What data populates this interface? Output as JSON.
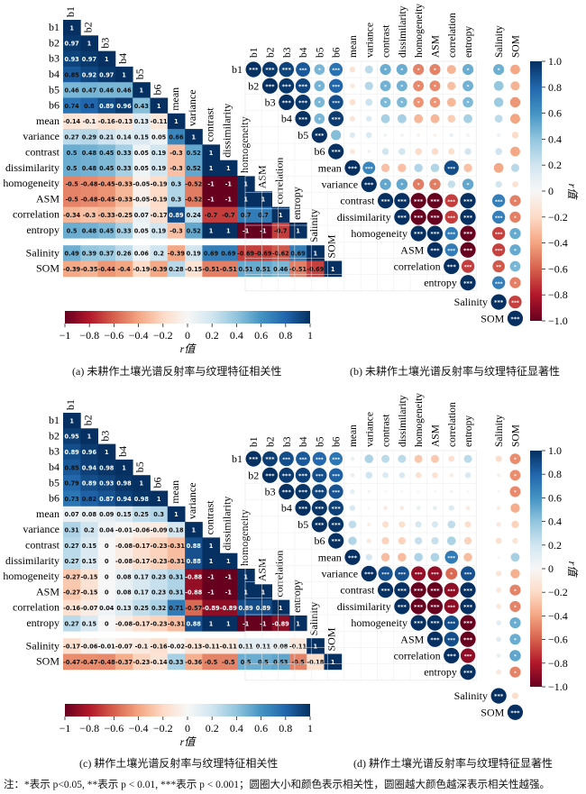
{
  "labels": [
    "b1",
    "b2",
    "b3",
    "b4",
    "b5",
    "b6",
    "mean",
    "variance",
    "contrast",
    "dissimilarity",
    "homogeneity",
    "ASM",
    "correlation",
    "entropy"
  ],
  "extra_labels": [
    "Salinity",
    "SOM"
  ],
  "colorbar": {
    "ticks_h": [
      "−1",
      "−0.8",
      "−0.6",
      "−0.4",
      "−0.2",
      "0",
      "0.2",
      "0.4",
      "0.6",
      "0.8",
      "1"
    ],
    "ticks_v": [
      "1.0",
      "0.8",
      "0.6",
      "0.4",
      "0.2",
      "0",
      "−0.2",
      "−0.4",
      "−0.6",
      "−0.8",
      "−1.0"
    ],
    "axis_label": "r值",
    "colors": [
      "#67001f",
      "#b2182b",
      "#d6604d",
      "#f4a582",
      "#fddbc7",
      "#f7f7f7",
      "#d1e5f0",
      "#92c5de",
      "#4393c3",
      "#2166ac",
      "#053061"
    ]
  },
  "sig_marks": {
    "p05": "*",
    "p01": "**",
    "p001": "***"
  },
  "captions": {
    "a": "(a) 未耕作土壤光谱反射率与纹理特征相关性",
    "b": "(b) 未耕作土壤光谱反射率与纹理特征显著性",
    "c": "(c) 耕作土壤光谱反射率与纹理特征相关性",
    "d": "(d) 耕作土壤光谱反射率与纹理特征显著性"
  },
  "note": "注：*表示 p<0.05, **表示 p < 0.01, ***表示 p < 0.001；圆圈大小和颜色表示相关性，圆圈越大颜色越深表示相关性越强。",
  "chart_data": [
    {
      "id": "uncultivated",
      "type": "heatmap",
      "xlabel": "r值",
      "clim": [
        -1,
        1
      ],
      "lower": [
        [
          1
        ],
        [
          0.97,
          1
        ],
        [
          0.93,
          0.97,
          1
        ],
        [
          0.85,
          0.92,
          0.97,
          1
        ],
        [
          0.46,
          0.47,
          0.46,
          0.46,
          1
        ],
        [
          0.74,
          0.8,
          0.89,
          0.96,
          0.43,
          1
        ],
        [
          -0.14,
          -0.1,
          -0.16,
          -0.13,
          0.13,
          -0.11,
          1
        ],
        [
          0.27,
          0.29,
          0.21,
          0.14,
          0.15,
          0.05,
          0.66,
          1
        ],
        [
          0.5,
          0.48,
          0.45,
          0.33,
          0.05,
          0.19,
          -0.3,
          0.52,
          1
        ],
        [
          0.5,
          0.48,
          0.45,
          0.33,
          0.05,
          0.19,
          -0.3,
          0.52,
          1,
          1
        ],
        [
          -0.5,
          -0.48,
          -0.45,
          -0.33,
          -0.05,
          -0.19,
          0.3,
          -0.52,
          -1,
          -1,
          1
        ],
        [
          -0.5,
          -0.48,
          -0.45,
          -0.33,
          -0.05,
          -0.19,
          0.3,
          -0.52,
          -1,
          -1,
          1,
          1
        ],
        [
          -0.34,
          -0.3,
          -0.33,
          -0.25,
          0.07,
          -0.17,
          0.89,
          0.24,
          -0.7,
          -0.7,
          0.7,
          0.7,
          1
        ],
        [
          0.5,
          0.48,
          0.45,
          0.33,
          0.05,
          0.19,
          -0.3,
          0.52,
          1,
          1,
          -1,
          -1,
          -0.7,
          1
        ]
      ],
      "extra_values": {
        "Salinity": [
          0.49,
          0.39,
          0.37,
          0.26,
          0.06,
          0.2,
          -0.39,
          0.19,
          0.69,
          0.69,
          -0.69,
          -0.69,
          -0.62,
          0.69,
          1
        ],
        "SOM": [
          -0.39,
          -0.35,
          -0.44,
          -0.4,
          -0.19,
          -0.39,
          0.28,
          -0.15,
          -0.51,
          -0.51,
          0.51,
          0.51,
          0.46,
          -0.51,
          -0.69,
          1
        ]
      }
    },
    {
      "id": "cultivated",
      "type": "heatmap",
      "xlabel": "r值",
      "clim": [
        -1,
        1
      ],
      "lower": [
        [
          1
        ],
        [
          0.95,
          1
        ],
        [
          0.89,
          0.96,
          1
        ],
        [
          0.85,
          0.94,
          0.98,
          1
        ],
        [
          0.79,
          0.89,
          0.93,
          0.98,
          1
        ],
        [
          0.73,
          0.82,
          0.87,
          0.94,
          0.98,
          1
        ],
        [
          0.07,
          0.08,
          0.09,
          0.15,
          0.25,
          0.3,
          1
        ],
        [
          0.31,
          0.2,
          0.04,
          -0.01,
          -0.06,
          -0.09,
          0.18,
          1
        ],
        [
          0.27,
          0.15,
          0,
          -0.08,
          -0.17,
          -0.23,
          -0.31,
          0.88,
          1
        ],
        [
          0.27,
          0.15,
          0,
          -0.08,
          -0.17,
          -0.23,
          -0.31,
          0.88,
          1,
          1
        ],
        [
          -0.27,
          -0.15,
          0,
          0.08,
          0.17,
          0.23,
          0.31,
          -0.88,
          -1,
          -1,
          1
        ],
        [
          -0.27,
          -0.15,
          0,
          0.08,
          0.17,
          0.23,
          0.31,
          -0.88,
          -1,
          -1,
          1,
          1
        ],
        [
          -0.16,
          -0.07,
          0.04,
          0.13,
          0.25,
          0.32,
          0.71,
          -0.57,
          -0.89,
          -0.89,
          0.89,
          0.89,
          1
        ],
        [
          0.27,
          0.15,
          0,
          -0.08,
          -0.17,
          -0.23,
          -0.31,
          0.88,
          1,
          1,
          -1,
          -1,
          -0.89,
          1
        ]
      ],
      "extra_values": {
        "Salinity": [
          -0.17,
          -0.06,
          -0.01,
          -0.07,
          -0.1,
          -0.16,
          -0.02,
          -0.13,
          -0.11,
          -0.11,
          0.11,
          0.11,
          0.08,
          -0.11,
          1
        ],
        "SOM": [
          -0.47,
          -0.47,
          -0.48,
          -0.37,
          -0.23,
          -0.14,
          0.33,
          -0.36,
          -0.5,
          -0.5,
          0.5,
          0.5,
          0.53,
          -0.5,
          -0.18,
          1
        ]
      }
    }
  ]
}
